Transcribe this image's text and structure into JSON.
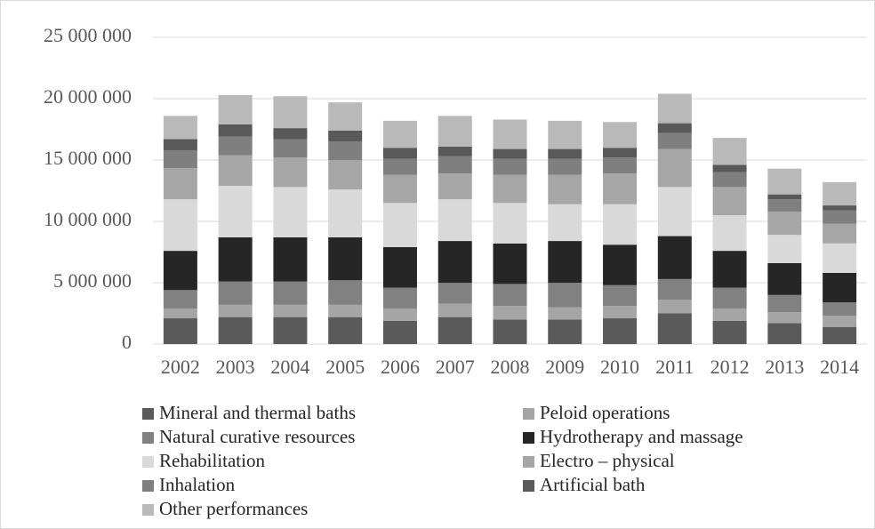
{
  "chart_data": {
    "type": "stacked-bar",
    "categories": [
      "2002",
      "2003",
      "2004",
      "2005",
      "2006",
      "2007",
      "2008",
      "2009",
      "2010",
      "2011",
      "2012",
      "2013",
      "2014"
    ],
    "series": [
      {
        "name": "Mineral and thermal baths",
        "color": "#5a5a5a",
        "values": [
          2100000,
          2200000,
          2200000,
          2200000,
          1900000,
          2200000,
          2000000,
          2000000,
          2100000,
          2500000,
          1900000,
          1700000,
          1400000
        ]
      },
      {
        "name": "Peloid operations",
        "color": "#a5a5a5",
        "values": [
          800000,
          1000000,
          1000000,
          1000000,
          1000000,
          1100000,
          1100000,
          1000000,
          1000000,
          1100000,
          1000000,
          900000,
          900000
        ]
      },
      {
        "name": "Natural curative resources",
        "color": "#818181",
        "values": [
          1500000,
          1900000,
          1900000,
          2000000,
          1700000,
          1700000,
          1800000,
          2000000,
          1700000,
          1700000,
          1700000,
          1400000,
          1100000
        ]
      },
      {
        "name": "Hydrotherapy and massage",
        "color": "#262626",
        "values": [
          3200000,
          3600000,
          3600000,
          3500000,
          3300000,
          3400000,
          3300000,
          3400000,
          3300000,
          3500000,
          3000000,
          2600000,
          2400000
        ]
      },
      {
        "name": "Rehabilitation",
        "color": "#d9d9d9",
        "values": [
          4200000,
          4200000,
          4100000,
          3900000,
          3600000,
          3400000,
          3300000,
          3000000,
          3300000,
          4000000,
          2900000,
          2300000,
          2400000
        ]
      },
      {
        "name": "Electro – physical",
        "color": "#a6a6a6",
        "values": [
          2550000,
          2500000,
          2400000,
          2400000,
          2300000,
          2100000,
          2300000,
          2400000,
          2500000,
          3100000,
          2300000,
          1900000,
          1600000
        ]
      },
      {
        "name": "Inhalation",
        "color": "#7f7f7f",
        "values": [
          1450000,
          1500000,
          1500000,
          1500000,
          1300000,
          1400000,
          1300000,
          1300000,
          1300000,
          1300000,
          1200000,
          1000000,
          1100000
        ]
      },
      {
        "name": "Artificial bath",
        "color": "#595959",
        "values": [
          900000,
          1000000,
          900000,
          900000,
          900000,
          800000,
          800000,
          800000,
          800000,
          800000,
          600000,
          400000,
          400000
        ]
      },
      {
        "name": "Other performances",
        "color": "#b9b9b9",
        "values": [
          1900000,
          2400000,
          2600000,
          2300000,
          2200000,
          2500000,
          2400000,
          2300000,
          2100000,
          2400000,
          2200000,
          2100000,
          1900000
        ]
      }
    ],
    "ylim": [
      0,
      25000000
    ],
    "yticks": [
      0,
      {
        "value": 5000000,
        "label": "5 000 000"
      },
      {
        "value": 10000000,
        "label": "10 000 000"
      },
      {
        "value": 15000000,
        "label": "15 000 000"
      },
      {
        "value": 20000000,
        "label": "20 000 000"
      },
      {
        "value": 25000000,
        "label": "25 000 000"
      }
    ],
    "grid": true
  }
}
